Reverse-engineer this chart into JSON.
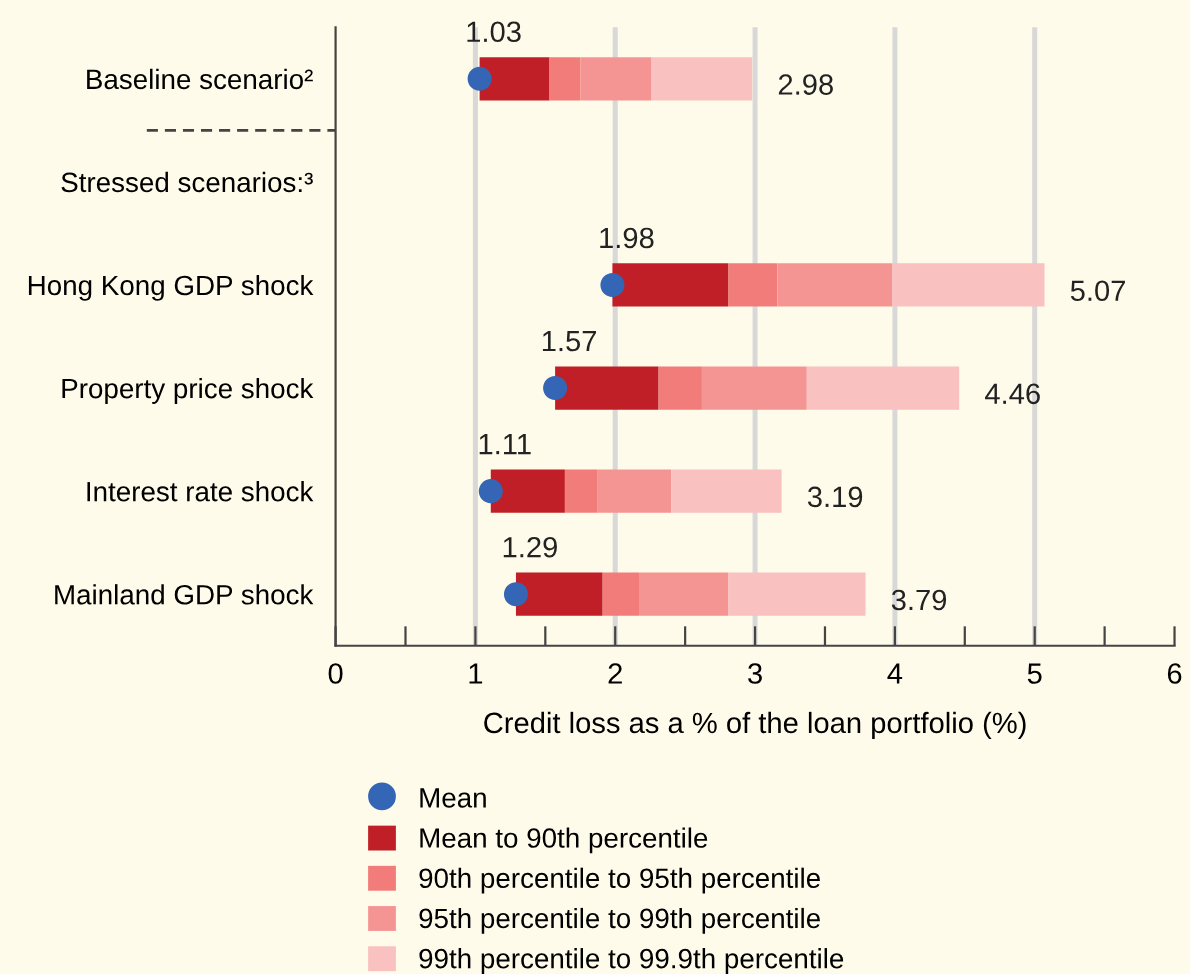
{
  "chart_data": {
    "type": "bar",
    "orientation": "horizontal",
    "xlabel": "Credit loss as a % of the loan portfolio (%)",
    "categories": [
      "Baseline scenario²",
      "Stressed scenarios:³",
      "Hong Kong GDP shock",
      "Property price shock",
      "Interest rate shock",
      "Mainland GDP shock"
    ],
    "series": [
      {
        "name": "Mean",
        "type": "scatter",
        "color": "#3466b5",
        "x": [
          "Baseline scenario²",
          "Stressed scenarios:³",
          "Hong Kong GDP shock",
          "Property price shock",
          "Interest rate shock",
          "Mainland GDP shock"
        ],
        "values": [
          1.03,
          null,
          1.98,
          1.57,
          1.11,
          1.29
        ],
        "value_labels": [
          "1.03",
          null,
          "1.98",
          "1.57",
          "1.11",
          "1.29"
        ]
      },
      {
        "name": "Mean to 90th percentile",
        "color": "#c01f27",
        "base": [
          1.03,
          null,
          1.98,
          1.57,
          1.11,
          1.29
        ],
        "values": [
          0.5,
          null,
          0.83,
          0.74,
          0.53,
          0.62
        ]
      },
      {
        "name": "90th percentile to 95th percentile",
        "color": "#f27c7a",
        "base": [
          1.53,
          null,
          2.81,
          2.31,
          1.64,
          1.91
        ],
        "values": [
          0.22,
          null,
          0.35,
          0.31,
          0.23,
          0.26
        ]
      },
      {
        "name": "95th percentile to 99th percentile",
        "color": "#f59593",
        "base": [
          1.75,
          null,
          3.16,
          2.62,
          1.87,
          2.17
        ],
        "values": [
          0.51,
          null,
          0.82,
          0.75,
          0.53,
          0.64
        ]
      },
      {
        "name": "99th percentile to 99.9th percentile",
        "color": "#f9c1c0",
        "base": [
          2.26,
          null,
          3.98,
          3.37,
          2.4,
          2.81
        ],
        "values": [
          0.72,
          null,
          1.09,
          1.09,
          0.79,
          0.98
        ]
      }
    ],
    "annotations": [
      {
        "text": "2.98",
        "x": 2.98,
        "y": "Baseline scenario²"
      },
      {
        "text": "5.07",
        "x": 5.07,
        "y": "Hong Kong GDP shock"
      },
      {
        "text": "4.46",
        "x": 4.46,
        "y": "Property price shock"
      },
      {
        "text": "3.19",
        "x": 3.19,
        "y": "Interest rate shock"
      },
      {
        "text": "3.79",
        "x": 3.79,
        "y": "Mainland GDP shock"
      }
    ],
    "xlim": [
      0,
      6
    ],
    "xticks": [
      0,
      {
        "value": 0.5,
        "label": null
      },
      1,
      {
        "value": 1.5,
        "label": null
      },
      2,
      {
        "value": 2.5,
        "label": null
      },
      3,
      {
        "value": 3.5,
        "label": null
      },
      4,
      {
        "value": 4.5,
        "label": null
      },
      5,
      {
        "value": 5.5,
        "label": null
      },
      6
    ],
    "grid": "x",
    "legend": "bottom",
    "marker": "circle"
  }
}
